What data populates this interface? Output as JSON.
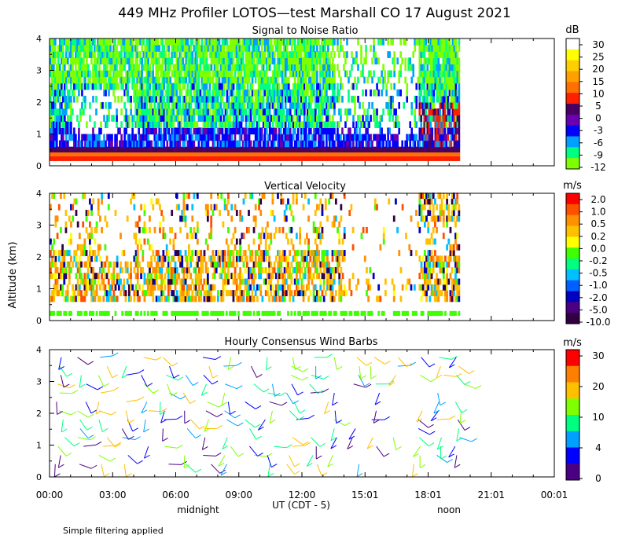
{
  "title": "449 MHz Profiler LOTOS—test Marshall CO 17 August 2021",
  "ylabel": "Altitude (km)",
  "xlabel": "UT  (CDT - 5)",
  "time_ticks": [
    "00:00",
    "03:00",
    "06:00",
    "09:00",
    "12:00",
    "15:01",
    "18:01",
    "21:01",
    "00:01"
  ],
  "local_labels": {
    "midnight": "midnight",
    "noon": "noon"
  },
  "footer": "Simple filtering applied",
  "chart_data": [
    {
      "type": "heatmap",
      "title": "Signal to Noise Ratio",
      "unit": "dB",
      "x_range_hours": [
        0,
        24
      ],
      "data_end_hours": 19.5,
      "ylim_km": [
        0,
        4
      ],
      "y_ticks": [
        "0",
        "1",
        "2",
        "3",
        "4"
      ],
      "colorbar_labels": [
        "30",
        "25",
        "20",
        "15",
        "10",
        "5",
        "0",
        "-3",
        "-6",
        "-9",
        "-12"
      ],
      "colors": [
        "#ffffff",
        "#ffff00",
        "#ffd000",
        "#ffa000",
        "#ff7000",
        "#ff2000",
        "#4a0060",
        "#6a00b0",
        "#0000ff",
        "#00a0ff",
        "#00ff80",
        "#80ff00"
      ]
    },
    {
      "type": "heatmap",
      "title": "Vertical Velocity",
      "unit": "m/s",
      "x_range_hours": [
        0,
        24
      ],
      "data_end_hours": 19.5,
      "ylim_km": [
        0,
        4
      ],
      "y_ticks": [
        "0",
        "1",
        "2",
        "3",
        "4"
      ],
      "colorbar_labels": [
        "2.0",
        "1.0",
        "0.5",
        "0.2",
        "0.0",
        "-0.2",
        "-0.5",
        "-1.0",
        "-2.0",
        "-5.0",
        "-10.0"
      ],
      "colors": [
        "#ff0000",
        "#ff5000",
        "#ff9000",
        "#ffc000",
        "#ffff00",
        "#40ff00",
        "#00ff80",
        "#00c0ff",
        "#0060ff",
        "#0000c0",
        "#4a0080",
        "#300040"
      ]
    },
    {
      "type": "wind_barbs",
      "title": "Hourly Consensus Wind Barbs",
      "unit": "m/s",
      "x_range_hours": [
        0,
        24
      ],
      "ylim_km": [
        0,
        4
      ],
      "y_ticks": [
        "0",
        "1",
        "2",
        "3",
        "4"
      ],
      "colorbar_labels": [
        "30",
        "20",
        "10",
        "4",
        "0"
      ],
      "colors": [
        "#ff0000",
        "#ff8000",
        "#ffc000",
        "#80ff00",
        "#00ff80",
        "#00a0ff",
        "#0000ff",
        "#4a0080"
      ]
    }
  ]
}
